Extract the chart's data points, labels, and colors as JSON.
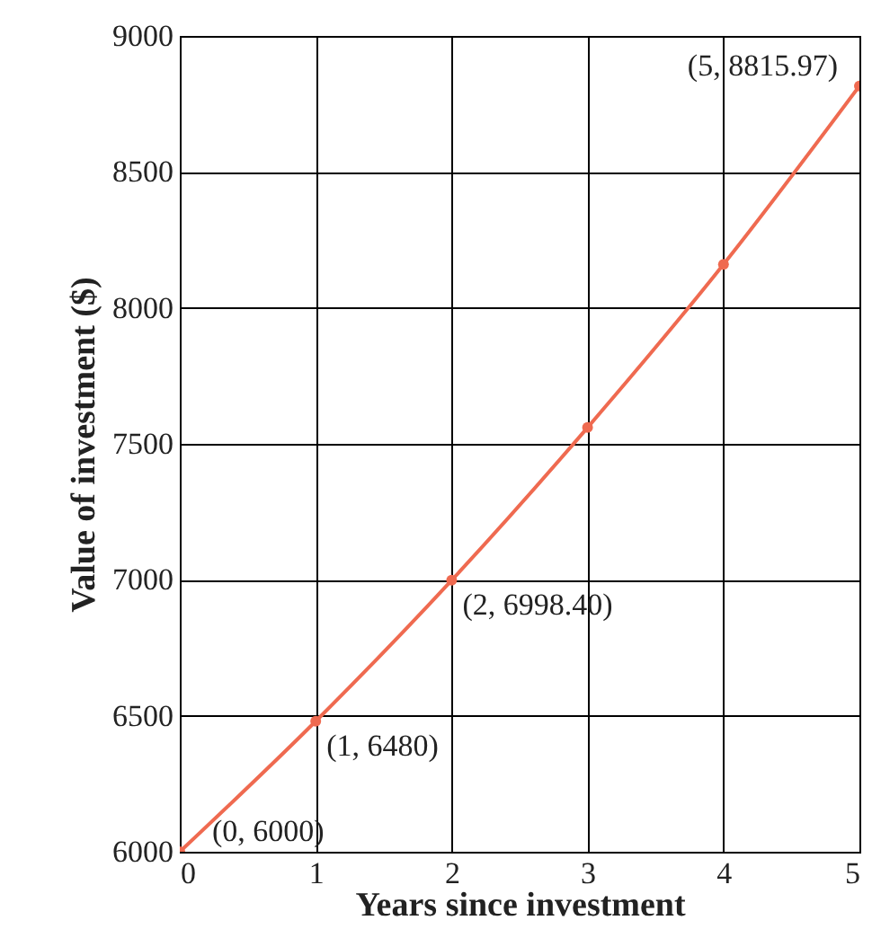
{
  "chart_data": {
    "type": "line",
    "xlabel": "Years since investment",
    "ylabel": "Value of investment ($)",
    "x": [
      0,
      1,
      2,
      3,
      4,
      5
    ],
    "series": [
      {
        "color": "#ef6a50",
        "values": [
          6000,
          6480,
          6998.4,
          7560,
          8160,
          8815.97
        ]
      }
    ],
    "xlim": [
      0,
      5
    ],
    "ylim": [
      6000,
      9000
    ],
    "xticks": [
      0,
      1,
      2,
      3,
      4,
      5
    ],
    "yticks": [
      6000,
      6500,
      7000,
      7500,
      8000,
      8500,
      9000
    ],
    "grid": true,
    "marker": "circle",
    "line_style": "solid",
    "annotations": [
      {
        "text": "(0, 6000)",
        "x": 0,
        "y": 6000
      },
      {
        "text": "(1, 6480)",
        "x": 1,
        "y": 6480
      },
      {
        "text": "(2, 6998.40)",
        "x": 2,
        "y": 6998.4
      },
      {
        "text": "(5, 8815.97)",
        "x": 5,
        "y": 8815.97
      }
    ]
  }
}
